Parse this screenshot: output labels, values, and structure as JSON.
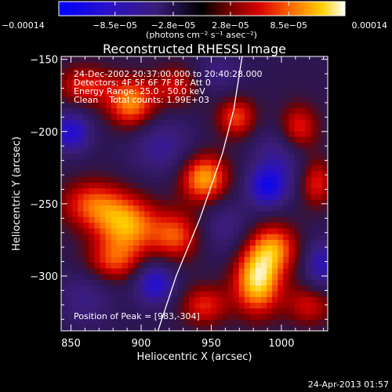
{
  "chart_data": {
    "type": "heatmap",
    "title": "Reconstructed RHESSI Image",
    "xlabel": "Heliocentric X (arcsec)",
    "ylabel": "Heliocentric Y (arcsec)",
    "xlim": [
      843,
      1033
    ],
    "ylim": [
      -338,
      -148
    ],
    "x_ticks": [
      850,
      900,
      950,
      1000
    ],
    "y_ticks": [
      -300,
      -250,
      -200,
      -150
    ],
    "x_tick_labels": [
      "850",
      "900",
      "950",
      "1000"
    ],
    "y_tick_labels": [
      "−300",
      "−250",
      "−200",
      "−150"
    ],
    "colorbar": {
      "min": -0.00014,
      "max": 0.00014,
      "tick_values": [
        -0.00014,
        -8.5e-05,
        -2.8e-05,
        2.8e-05,
        8.5e-05,
        0.00014
      ],
      "tick_labels": [
        "−0.00014",
        "−8.5e−05",
        "−2.8e−05",
        "2.8e−05",
        "8.5e−05",
        "0.00014"
      ],
      "units": "(photons cm⁻² s⁻¹ asec⁻²)"
    },
    "info_lines": [
      "24-Dec-2002 20:37:00.000 to 20:40:28.000",
      "Detectors: 4F 5F 6F 7F 8F, Att 0",
      "Energy Range: 25.0 - 50.0 keV",
      "Clean    Total counts: 1.99E+03"
    ],
    "peak_label": "Position of Peak = [983,-304]",
    "peak_position": [
      983,
      -304
    ],
    "blobs": [
      {
        "x": 983,
        "y": -303,
        "v": 0.000135,
        "sx": 12,
        "sy": 16
      },
      {
        "x": 995,
        "y": -280,
        "v": 9e-05,
        "sx": 12,
        "sy": 12
      },
      {
        "x": 890,
        "y": -265,
        "v": 0.00011,
        "sx": 16,
        "sy": 14
      },
      {
        "x": 865,
        "y": -250,
        "v": 8e-05,
        "sx": 16,
        "sy": 12
      },
      {
        "x": 880,
        "y": -290,
        "v": 7e-05,
        "sx": 14,
        "sy": 10
      },
      {
        "x": 925,
        "y": -272,
        "v": 8e-05,
        "sx": 12,
        "sy": 12
      },
      {
        "x": 945,
        "y": -232,
        "v": 0.000115,
        "sx": 12,
        "sy": 12
      },
      {
        "x": 968,
        "y": -190,
        "v": 8e-05,
        "sx": 10,
        "sy": 10
      },
      {
        "x": 1012,
        "y": -198,
        "v": 8e-05,
        "sx": 10,
        "sy": 12
      },
      {
        "x": 1025,
        "y": -235,
        "v": 7e-05,
        "sx": 8,
        "sy": 12
      },
      {
        "x": 893,
        "y": -180,
        "v": 0.000105,
        "sx": 12,
        "sy": 12
      },
      {
        "x": 860,
        "y": -168,
        "v": 7e-05,
        "sx": 14,
        "sy": 10
      },
      {
        "x": 925,
        "y": -168,
        "v": 6e-05,
        "sx": 12,
        "sy": 10
      },
      {
        "x": 945,
        "y": -320,
        "v": 7e-05,
        "sx": 12,
        "sy": 10
      },
      {
        "x": 1020,
        "y": -320,
        "v": 6e-05,
        "sx": 12,
        "sy": 10
      },
      {
        "x": 850,
        "y": -200,
        "v": -9e-05,
        "sx": 10,
        "sy": 10
      },
      {
        "x": 915,
        "y": -210,
        "v": -5e-05,
        "sx": 16,
        "sy": 14
      },
      {
        "x": 990,
        "y": -238,
        "v": -0.0001,
        "sx": 10,
        "sy": 10
      },
      {
        "x": 1000,
        "y": -215,
        "v": -5e-05,
        "sx": 14,
        "sy": 14
      },
      {
        "x": 910,
        "y": -305,
        "v": -9e-05,
        "sx": 10,
        "sy": 10
      },
      {
        "x": 1028,
        "y": -292,
        "v": -7e-05,
        "sx": 8,
        "sy": 12
      },
      {
        "x": 960,
        "y": -265,
        "v": -4e-05,
        "sx": 12,
        "sy": 14
      },
      {
        "x": 860,
        "y": -315,
        "v": -4e-05,
        "sx": 14,
        "sy": 14
      },
      {
        "x": 955,
        "y": -160,
        "v": -4e-05,
        "sx": 12,
        "sy": 10
      }
    ],
    "limb_curve": [
      [
        912,
        -338
      ],
      [
        925,
        -300
      ],
      [
        942,
        -260
      ],
      [
        958,
        -215
      ],
      [
        966,
        -185
      ],
      [
        972,
        -148
      ]
    ]
  },
  "footer": {
    "timestamp": "24-Apr-2013 01:57"
  }
}
